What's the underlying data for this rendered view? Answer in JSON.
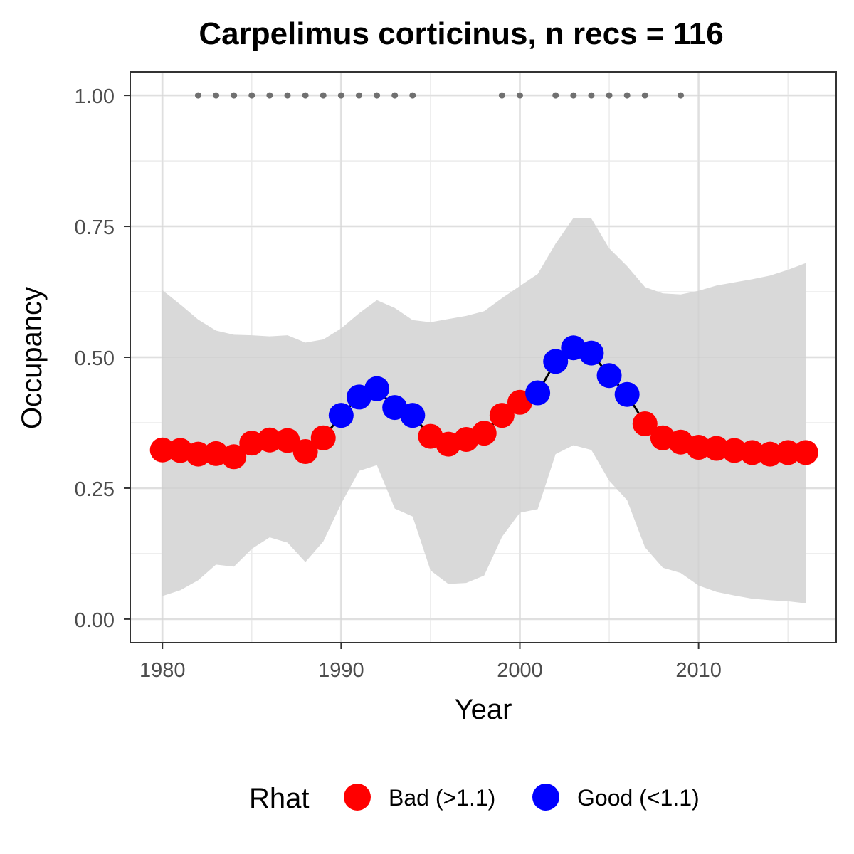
{
  "chart_data": {
    "type": "line",
    "title": "Carpelimus corticinus, n recs = 116",
    "xlabel": "Year",
    "ylabel": "Occupancy",
    "xlim": [
      1978.2,
      2017.7
    ],
    "ylim": [
      -0.045,
      1.045
    ],
    "x_ticks": [
      1980,
      1990,
      2000,
      2010
    ],
    "x_tick_labels": [
      "1980",
      "1990",
      "2000",
      "2010"
    ],
    "x_minor_ticks": [
      1985,
      1995,
      2005,
      2015
    ],
    "y_ticks": [
      0,
      0.25,
      0.5,
      0.75,
      1.0
    ],
    "y_tick_labels": [
      "0.00",
      "0.25",
      "0.50",
      "0.75",
      "1.00"
    ],
    "y_minor_ticks": [
      0.125,
      0.375,
      0.625,
      0.875
    ],
    "grid": true,
    "colors": {
      "bad": "#ff0000",
      "good": "#0000ff",
      "ribbon": "#d9d9d9",
      "line": "#000000",
      "record_dots": "#707070",
      "grid": "#ebebeb",
      "panel_border": "#333333",
      "tick_text": "#4d4d4d"
    },
    "series": [
      {
        "name": "Occupancy",
        "x": [
          1980,
          1981,
          1982,
          1983,
          1984,
          1985,
          1986,
          1987,
          1988,
          1989,
          1990,
          1991,
          1992,
          1993,
          1994,
          1995,
          1996,
          1997,
          1998,
          1999,
          2000,
          2001,
          2002,
          2003,
          2004,
          2005,
          2006,
          2007,
          2008,
          2009,
          2010,
          2011,
          2012,
          2013,
          2014,
          2015,
          2016
        ],
        "values": [
          0.323,
          0.322,
          0.315,
          0.316,
          0.31,
          0.336,
          0.342,
          0.341,
          0.32,
          0.346,
          0.389,
          0.424,
          0.44,
          0.404,
          0.389,
          0.349,
          0.334,
          0.343,
          0.355,
          0.389,
          0.414,
          0.432,
          0.492,
          0.518,
          0.508,
          0.465,
          0.429,
          0.373,
          0.346,
          0.338,
          0.328,
          0.326,
          0.322,
          0.318,
          0.315,
          0.318,
          0.318
        ],
        "rhat": [
          "Bad",
          "Bad",
          "Bad",
          "Bad",
          "Bad",
          "Bad",
          "Bad",
          "Bad",
          "Bad",
          "Bad",
          "Good",
          "Good",
          "Good",
          "Good",
          "Good",
          "Bad",
          "Bad",
          "Bad",
          "Bad",
          "Bad",
          "Bad",
          "Good",
          "Good",
          "Good",
          "Good",
          "Good",
          "Good",
          "Bad",
          "Bad",
          "Bad",
          "Bad",
          "Bad",
          "Bad",
          "Bad",
          "Bad",
          "Bad",
          "Bad"
        ],
        "lower": [
          0.044,
          0.055,
          0.074,
          0.104,
          0.1,
          0.134,
          0.156,
          0.146,
          0.109,
          0.148,
          0.22,
          0.283,
          0.294,
          0.211,
          0.196,
          0.093,
          0.067,
          0.069,
          0.083,
          0.157,
          0.203,
          0.21,
          0.315,
          0.332,
          0.323,
          0.264,
          0.227,
          0.137,
          0.098,
          0.088,
          0.064,
          0.052,
          0.045,
          0.039,
          0.036,
          0.034,
          0.03
        ],
        "upper": [
          0.628,
          0.601,
          0.572,
          0.551,
          0.543,
          0.542,
          0.54,
          0.542,
          0.528,
          0.534,
          0.555,
          0.584,
          0.609,
          0.594,
          0.571,
          0.567,
          0.573,
          0.579,
          0.588,
          0.613,
          0.636,
          0.659,
          0.717,
          0.766,
          0.765,
          0.708,
          0.674,
          0.634,
          0.622,
          0.62,
          0.627,
          0.637,
          0.643,
          0.649,
          0.656,
          0.667,
          0.68
        ]
      }
    ],
    "record_years": [
      1982,
      1983,
      1984,
      1985,
      1986,
      1987,
      1988,
      1989,
      1990,
      1991,
      1992,
      1993,
      1994,
      1999,
      2000,
      2002,
      2003,
      2004,
      2005,
      2006,
      2007,
      2009
    ],
    "record_value": 1.0,
    "legend": {
      "title": "Rhat",
      "position": "bottom",
      "items": [
        {
          "label": "Bad (>1.1)",
          "color": "#ff0000"
        },
        {
          "label": "Good (<1.1)",
          "color": "#0000ff"
        }
      ]
    }
  }
}
